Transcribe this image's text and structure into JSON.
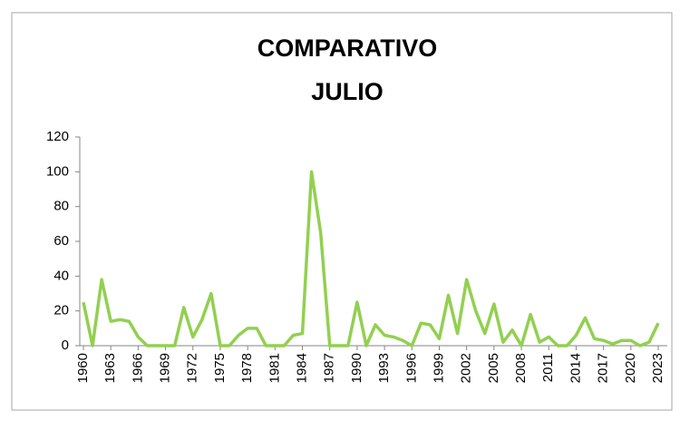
{
  "chart_data": {
    "type": "line",
    "title": [
      "COMPARATIVO",
      "JULIO"
    ],
    "x": [
      1960,
      1961,
      1962,
      1963,
      1964,
      1965,
      1966,
      1967,
      1968,
      1969,
      1970,
      1971,
      1972,
      1973,
      1974,
      1975,
      1976,
      1977,
      1978,
      1979,
      1980,
      1981,
      1982,
      1983,
      1984,
      1985,
      1986,
      1987,
      1988,
      1989,
      1990,
      1991,
      1992,
      1993,
      1994,
      1995,
      1996,
      1997,
      1998,
      1999,
      2000,
      2001,
      2002,
      2003,
      2004,
      2005,
      2006,
      2007,
      2008,
      2009,
      2010,
      2011,
      2012,
      2013,
      2014,
      2015,
      2016,
      2017,
      2018,
      2019,
      2020,
      2021,
      2022,
      2023
    ],
    "values": [
      25,
      0,
      38,
      14,
      15,
      14,
      5,
      0,
      0,
      0,
      0,
      22,
      5,
      15,
      30,
      0,
      0,
      6,
      10,
      10,
      0,
      0,
      0,
      6,
      7,
      100,
      65,
      0,
      0,
      0,
      25,
      0,
      12,
      6,
      5,
      3,
      0,
      13,
      12,
      4,
      29,
      7,
      38,
      20,
      7,
      24,
      2,
      9,
      0,
      18,
      2,
      5,
      0,
      0,
      6,
      16,
      4,
      3,
      1,
      3,
      3,
      0,
      2,
      13
    ],
    "color": "#92d050",
    "xlim": [
      1960,
      2023
    ],
    "xticks": [
      1960,
      1963,
      1966,
      1969,
      1972,
      1975,
      1978,
      1981,
      1984,
      1987,
      1990,
      1993,
      1996,
      1999,
      2002,
      2005,
      2008,
      2011,
      2014,
      2017,
      2020,
      2023
    ],
    "ylim": [
      0,
      120
    ],
    "yticks": [
      0,
      20,
      40,
      60,
      80,
      100,
      120
    ],
    "grid": false
  }
}
